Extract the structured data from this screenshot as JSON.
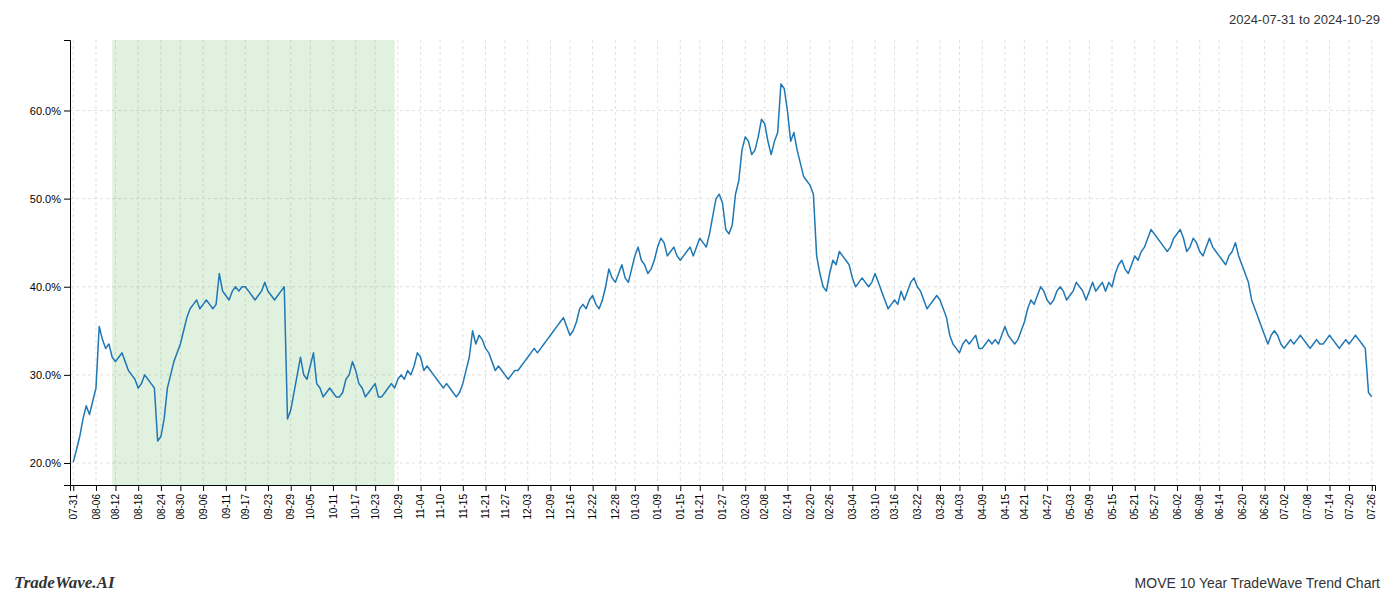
{
  "chart_data": {
    "type": "line",
    "title": "MOVE 10 Year TradeWave Trend Chart",
    "subtitle": "2024-07-31 to 2024-10-29",
    "annotations": [
      "TradeWave.AI"
    ],
    "grid": true,
    "ylim": [
      17.5,
      68.0
    ],
    "yticks": [
      {
        "value": 20.0,
        "label": "20.0%"
      },
      {
        "value": 30.0,
        "label": "30.0%"
      },
      {
        "value": 40.0,
        "label": "40.0%"
      },
      {
        "value": 50.0,
        "label": "50.0%"
      },
      {
        "value": 60.0,
        "label": "60.0%"
      }
    ],
    "shade": [
      12,
      99
    ],
    "categories": [
      "07-31",
      null,
      null,
      null,
      null,
      null,
      null,
      "08-06",
      null,
      null,
      null,
      null,
      null,
      "08-12",
      null,
      null,
      null,
      null,
      null,
      null,
      "08-18",
      null,
      null,
      null,
      null,
      null,
      null,
      "08-24",
      null,
      null,
      null,
      null,
      null,
      "08-30",
      null,
      null,
      null,
      null,
      null,
      null,
      "09-06",
      null,
      null,
      null,
      null,
      null,
      null,
      "09-11",
      null,
      null,
      null,
      null,
      null,
      "09-17",
      null,
      null,
      null,
      null,
      null,
      null,
      "09-23",
      null,
      null,
      null,
      null,
      null,
      null,
      "09-29",
      null,
      null,
      null,
      null,
      null,
      "10-05",
      null,
      null,
      null,
      null,
      null,
      null,
      "10-11",
      null,
      null,
      null,
      null,
      null,
      null,
      "10-17",
      null,
      null,
      null,
      null,
      null,
      "10-23",
      null,
      null,
      null,
      null,
      null,
      null,
      "10-29",
      null,
      null,
      null,
      null,
      null,
      null,
      "11-04",
      null,
      null,
      null,
      null,
      null,
      "11-10",
      null,
      null,
      null,
      null,
      null,
      null,
      "11-15",
      null,
      null,
      null,
      null,
      null,
      null,
      "11-21",
      null,
      null,
      null,
      null,
      null,
      "11-27",
      null,
      null,
      null,
      null,
      null,
      null,
      "12-03",
      null,
      null,
      null,
      null,
      null,
      null,
      "12-09",
      null,
      null,
      null,
      null,
      null,
      "12-16",
      null,
      null,
      null,
      null,
      null,
      null,
      "12-22",
      null,
      null,
      null,
      null,
      null,
      null,
      "12-28",
      null,
      null,
      null,
      null,
      null,
      "01-03",
      null,
      null,
      null,
      null,
      null,
      null,
      "01-09",
      null,
      null,
      null,
      null,
      null,
      null,
      "01-15",
      null,
      null,
      null,
      null,
      null,
      "01-21",
      null,
      null,
      null,
      null,
      null,
      null,
      "01-27",
      null,
      null,
      null,
      null,
      null,
      null,
      "02-03",
      null,
      null,
      null,
      null,
      null,
      "02-08",
      null,
      null,
      null,
      null,
      null,
      null,
      "02-14",
      null,
      null,
      null,
      null,
      null,
      null,
      "02-20",
      null,
      null,
      null,
      null,
      null,
      "02-26",
      null,
      null,
      null,
      null,
      null,
      null,
      "03-04",
      null,
      null,
      null,
      null,
      null,
      null,
      "03-10",
      null,
      null,
      null,
      null,
      null,
      "03-16",
      null,
      null,
      null,
      null,
      null,
      null,
      "03-22",
      null,
      null,
      null,
      null,
      null,
      null,
      "03-28",
      null,
      null,
      null,
      null,
      null,
      "04-03",
      null,
      null,
      null,
      null,
      null,
      null,
      "04-09",
      null,
      null,
      null,
      null,
      null,
      null,
      "04-15",
      null,
      null,
      null,
      null,
      null,
      "04-21",
      null,
      null,
      null,
      null,
      null,
      null,
      "04-27",
      null,
      null,
      null,
      null,
      null,
      null,
      "05-03",
      null,
      null,
      null,
      null,
      null,
      "05-09",
      null,
      null,
      null,
      null,
      null,
      null,
      "05-15",
      null,
      null,
      null,
      null,
      null,
      null,
      "05-21",
      null,
      null,
      null,
      null,
      null,
      "05-27",
      null,
      null,
      null,
      null,
      null,
      null,
      "06-02",
      null,
      null,
      null,
      null,
      null,
      null,
      "06-08",
      null,
      null,
      null,
      null,
      null,
      "06-14",
      null,
      null,
      null,
      null,
      null,
      null,
      "06-20",
      null,
      null,
      null,
      null,
      null,
      null,
      "06-26",
      null,
      null,
      null,
      null,
      null,
      "07-02",
      null,
      null,
      null,
      null,
      null,
      null,
      "07-08",
      null,
      null,
      null,
      null,
      null,
      null,
      "07-14",
      null,
      null,
      null,
      null,
      null,
      "07-20",
      null,
      null,
      null,
      null,
      null,
      null,
      "07-26"
    ],
    "values": [
      20.1,
      21.5,
      23.0,
      25.0,
      26.5,
      25.5,
      27.0,
      28.5,
      35.5,
      34.0,
      33.0,
      33.5,
      32.0,
      31.5,
      32.0,
      32.5,
      31.5,
      30.5,
      30.0,
      29.5,
      28.5,
      29.0,
      30.0,
      29.5,
      29.0,
      28.5,
      22.5,
      23.0,
      25.0,
      28.5,
      30.0,
      31.5,
      32.5,
      33.5,
      35.0,
      36.5,
      37.5,
      38.0,
      38.5,
      37.5,
      38.0,
      38.5,
      38.0,
      37.5,
      38.0,
      41.5,
      39.5,
      39.0,
      38.5,
      39.5,
      40.0,
      39.5,
      40.0,
      40.0,
      39.5,
      39.0,
      38.5,
      39.0,
      39.5,
      40.5,
      39.5,
      39.0,
      38.5,
      39.0,
      39.5,
      40.0,
      25.0,
      26.0,
      28.0,
      30.0,
      32.0,
      30.0,
      29.5,
      31.0,
      32.5,
      29.0,
      28.5,
      27.5,
      28.0,
      28.5,
      28.0,
      27.5,
      27.5,
      28.0,
      29.5,
      30.0,
      31.5,
      30.5,
      29.0,
      28.5,
      27.5,
      28.0,
      28.5,
      29.0,
      27.5,
      27.5,
      28.0,
      28.5,
      29.0,
      28.5,
      29.5,
      30.0,
      29.5,
      30.5,
      30.0,
      31.0,
      32.5,
      32.0,
      30.5,
      31.0,
      30.5,
      30.0,
      29.5,
      29.0,
      28.5,
      29.0,
      28.5,
      28.0,
      27.5,
      28.0,
      29.0,
      30.5,
      32.0,
      35.0,
      33.5,
      34.5,
      34.0,
      33.0,
      32.5,
      31.5,
      30.5,
      31.0,
      30.5,
      30.0,
      29.5,
      30.0,
      30.5,
      30.5,
      31.0,
      31.5,
      32.0,
      32.5,
      33.0,
      32.5,
      33.0,
      33.5,
      34.0,
      34.5,
      35.0,
      35.5,
      36.0,
      36.5,
      35.5,
      34.5,
      35.0,
      36.0,
      37.5,
      38.0,
      37.5,
      38.5,
      39.0,
      38.0,
      37.5,
      38.5,
      40.0,
      42.0,
      41.0,
      40.5,
      41.5,
      42.5,
      41.0,
      40.5,
      42.0,
      43.5,
      44.5,
      43.0,
      42.5,
      41.5,
      42.0,
      43.0,
      44.5,
      45.5,
      45.0,
      43.5,
      44.0,
      44.5,
      43.5,
      43.0,
      43.5,
      44.0,
      44.5,
      43.5,
      44.5,
      45.5,
      45.0,
      44.5,
      46.0,
      48.0,
      50.0,
      50.5,
      49.5,
      46.5,
      46.0,
      47.0,
      50.5,
      52.0,
      55.5,
      57.0,
      56.5,
      55.0,
      55.5,
      57.0,
      59.0,
      58.5,
      56.5,
      55.0,
      56.5,
      57.5,
      63.0,
      62.5,
      60.0,
      56.5,
      57.5,
      55.5,
      54.0,
      52.5,
      52.0,
      51.5,
      50.5,
      43.5,
      41.5,
      40.0,
      39.5,
      41.5,
      43.0,
      42.5,
      44.0,
      43.5,
      43.0,
      42.5,
      41.0,
      40.0,
      40.5,
      41.0,
      40.5,
      40.0,
      40.5,
      41.5,
      40.5,
      39.5,
      38.5,
      37.5,
      38.0,
      38.5,
      38.0,
      39.5,
      38.5,
      39.5,
      40.5,
      41.0,
      40.0,
      39.5,
      38.5,
      37.5,
      38.0,
      38.5,
      39.0,
      38.5,
      37.5,
      36.5,
      34.5,
      33.5,
      33.0,
      32.5,
      33.5,
      34.0,
      33.5,
      34.0,
      34.5,
      33.0,
      33.0,
      33.5,
      34.0,
      33.5,
      34.0,
      33.5,
      34.5,
      35.5,
      34.5,
      34.0,
      33.5,
      34.0,
      35.0,
      36.0,
      37.5,
      38.5,
      38.0,
      39.0,
      40.0,
      39.5,
      38.5,
      38.0,
      38.5,
      39.5,
      40.0,
      39.5,
      38.5,
      39.0,
      39.5,
      40.5,
      40.0,
      39.5,
      38.5,
      39.5,
      40.5,
      39.5,
      40.0,
      40.5,
      39.5,
      40.5,
      40.0,
      41.5,
      42.5,
      43.0,
      42.0,
      41.5,
      42.5,
      43.5,
      43.0,
      44.0,
      44.5,
      45.5,
      46.5,
      46.0,
      45.5,
      45.0,
      44.5,
      44.0,
      44.5,
      45.5,
      46.0,
      46.5,
      45.5,
      44.0,
      44.5,
      45.5,
      45.0,
      44.0,
      43.5,
      44.5,
      45.5,
      44.5,
      44.0,
      43.5,
      43.0,
      42.5,
      43.5,
      44.0,
      45.0,
      43.5,
      42.5,
      41.5,
      40.5,
      38.5,
      37.5,
      36.5,
      35.5,
      34.5,
      33.5,
      34.5,
      35.0,
      34.5,
      33.5,
      33.0,
      33.5,
      34.0,
      33.5,
      34.0,
      34.5,
      34.0,
      33.5,
      33.0,
      33.5,
      34.0,
      33.5,
      33.5,
      34.0,
      34.5,
      34.0,
      33.5,
      33.0,
      33.5,
      34.0,
      33.5,
      34.0,
      34.5,
      34.0,
      33.5,
      33.0,
      28.0,
      27.5
    ]
  }
}
